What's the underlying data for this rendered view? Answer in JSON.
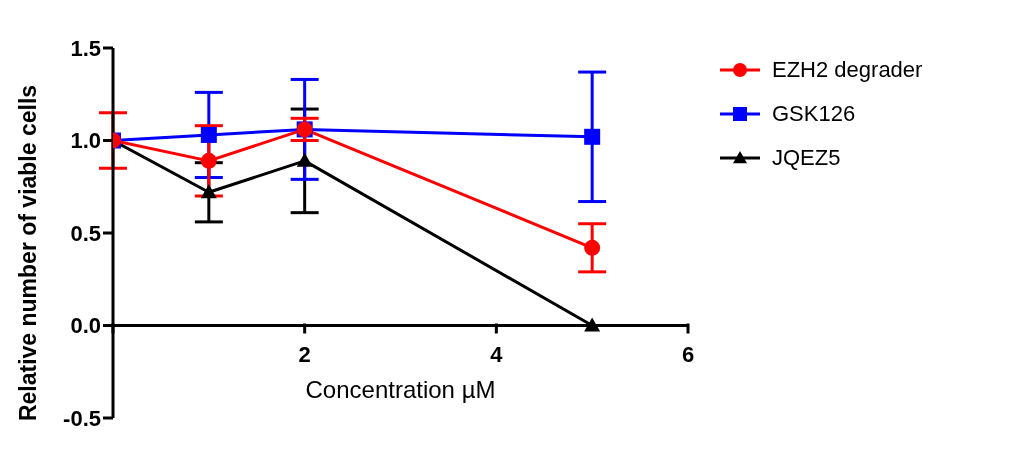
{
  "chart_data": {
    "type": "line",
    "xlabel": "Concentration µM",
    "ylabel": "Relative number of viable cells",
    "x": [
      0,
      1,
      2,
      5
    ],
    "series": [
      {
        "name": "EZH2 degrader",
        "color": "#ff0000",
        "marker": "circle",
        "values": [
          1.0,
          0.89,
          1.06,
          0.42
        ],
        "errors": [
          0.15,
          0.19,
          0.06,
          0.13
        ]
      },
      {
        "name": "GSK126",
        "color": "#0000ff",
        "marker": "square",
        "values": [
          1.0,
          1.03,
          1.06,
          1.02
        ],
        "errors": [
          null,
          0.23,
          0.27,
          0.35
        ]
      },
      {
        "name": "JQEZ5",
        "color": "#000000",
        "marker": "triangle",
        "values": [
          1.0,
          0.72,
          0.89,
          0.0
        ],
        "errors": [
          null,
          0.16,
          0.28,
          null
        ]
      }
    ],
    "xlim": [
      0,
      6
    ],
    "xticks": [
      {
        "value": 0,
        "label": null
      },
      2,
      4,
      6
    ],
    "ylim": [
      -0.5,
      1.5
    ],
    "yticks": [
      {
        "value": -0.5,
        "label": "-0.5"
      },
      {
        "value": 0,
        "label": "0.0"
      },
      {
        "value": 0.5,
        "label": "0.5"
      },
      {
        "value": 1,
        "label": "1.0"
      },
      {
        "value": 1.5,
        "label": "1.5"
      }
    ],
    "grid": false,
    "legend": "top right"
  }
}
